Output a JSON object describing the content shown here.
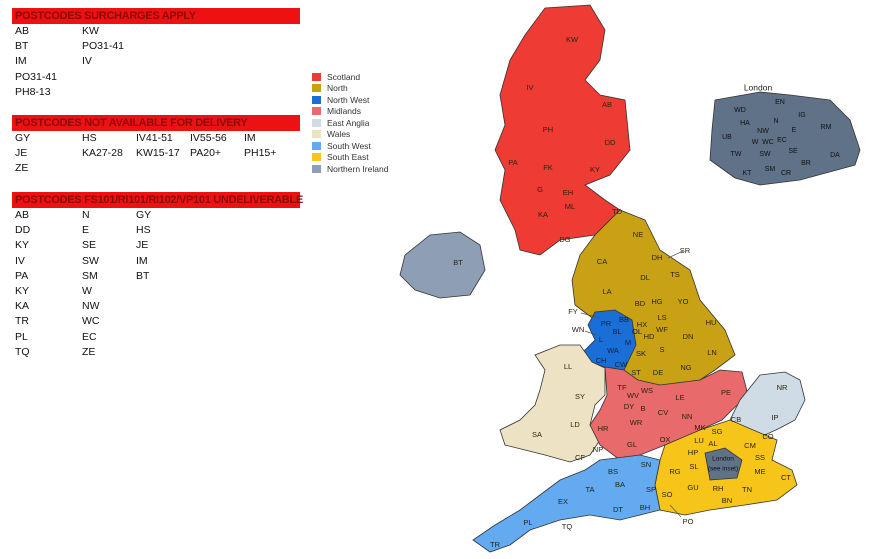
{
  "surcharges": {
    "title": "POSTCODES SURCHARGES APPLY",
    "cols": 3,
    "rows": [
      [
        "AB",
        "KW"
      ],
      [
        "BT",
        "PO31-41"
      ],
      [
        "IM",
        "IV"
      ],
      [
        "PO31-41",
        ""
      ],
      [
        "PH8-13",
        ""
      ]
    ]
  },
  "not_available": {
    "title": "POSTCODES NOT AVAILABLE FOR DELIVERY",
    "rows": [
      [
        "GY",
        "HS",
        "IV41-51",
        "IV55-56",
        "IM"
      ],
      [
        "JE",
        "KA27-28",
        "KW15-17",
        "PA20+",
        "PH15+"
      ],
      [
        "ZE",
        "",
        "",
        "",
        ""
      ]
    ]
  },
  "undeliverable": {
    "title": "POSTCODES FS101/RI101/RI102/VP101 UNDELIVERABLE",
    "rows": [
      [
        "AB",
        "N",
        "GY"
      ],
      [
        "DD",
        "E",
        "HS"
      ],
      [
        "KY",
        "SE",
        "JE"
      ],
      [
        "IV",
        "SW",
        "IM"
      ],
      [
        "PA",
        "SM",
        "BT"
      ],
      [
        "KY",
        "W",
        ""
      ],
      [
        "KA",
        "NW",
        ""
      ],
      [
        "TR",
        "WC",
        ""
      ],
      [
        "PL",
        "EC",
        ""
      ],
      [
        "TQ",
        "ZE",
        ""
      ]
    ]
  },
  "legend": [
    {
      "label": "Scotland",
      "color": "#ee3b33"
    },
    {
      "label": "North",
      "color": "#c9a114"
    },
    {
      "label": "North West",
      "color": "#1a6fd6"
    },
    {
      "label": "Midlands",
      "color": "#e86a6a"
    },
    {
      "label": "East Anglia",
      "color": "#cfdce6"
    },
    {
      "label": "Wales",
      "color": "#ede3c4"
    },
    {
      "label": "South West",
      "color": "#64aaf0"
    },
    {
      "label": "South East",
      "color": "#f7c51a"
    },
    {
      "label": "Northern Ireland",
      "color": "#8e9fb5"
    }
  ],
  "london_color": "#5f7287",
  "map": {
    "london_title": "London",
    "london_note": [
      "London",
      "(see inset)"
    ],
    "regions": {
      "scotland": [
        "KW",
        "IV",
        "AB",
        "PH",
        "DD",
        "PA",
        "FK",
        "KY",
        "G",
        "EH",
        "ML",
        "KA",
        "TD",
        "DG"
      ],
      "north": [
        "NE",
        "SR",
        "DH",
        "CA",
        "DL",
        "TS",
        "LA",
        "YO",
        "BD",
        "HG",
        "LS",
        "HU",
        "HX",
        "WF",
        "HD",
        "DN",
        "S",
        "LN",
        "DE",
        "NG"
      ],
      "northwest": [
        "FY",
        "PR",
        "BB",
        "BL",
        "OL",
        "WN",
        "L",
        "M",
        "WA",
        "SK",
        "CH",
        "CW"
      ],
      "wales": [
        "LL",
        "SY",
        "LD",
        "SA",
        "CF",
        "NP"
      ],
      "midlands": [
        "ST",
        "TF",
        "WV",
        "WS",
        "DY",
        "B",
        "WR",
        "HR",
        "GL",
        "LE",
        "CV",
        "NN",
        "MK",
        "OX",
        "PE"
      ],
      "eastanglia": [
        "NR",
        "IP",
        "CB"
      ],
      "southeast": [
        "SG",
        "CO",
        "LU",
        "AL",
        "HP",
        "CM",
        "SS",
        "SL",
        "RG",
        "ME",
        "CT",
        "GU",
        "RH",
        "SO",
        "TN",
        "BN",
        "PO"
      ],
      "southwest": [
        "SN",
        "BS",
        "BA",
        "TA",
        "SP",
        "EX",
        "DT",
        "BH",
        "PL",
        "TQ",
        "TR"
      ],
      "northernireland": [
        "BT"
      ],
      "london": [
        "WD",
        "EN",
        "HA",
        "N",
        "IG",
        "NW",
        "E",
        "RM",
        "UB",
        "W",
        "WC",
        "EC",
        "SE",
        "TW",
        "SW",
        "DA",
        "BR",
        "SM",
        "CR",
        "KT"
      ]
    }
  }
}
